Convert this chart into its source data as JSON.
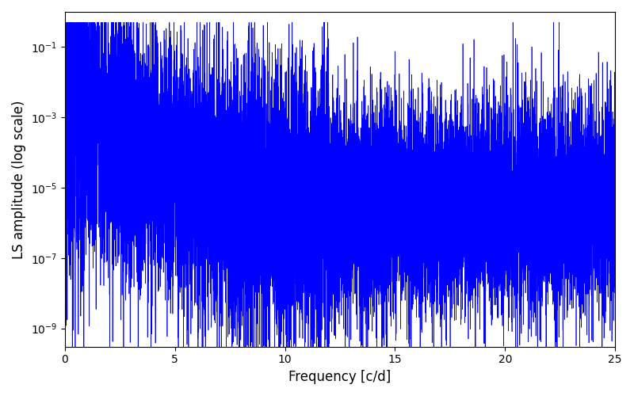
{
  "xlabel": "Frequency [c/d]",
  "ylabel": "LS amplitude (log scale)",
  "xlim": [
    0,
    25
  ],
  "ylim": [
    3e-10,
    1.0
  ],
  "line_color": "blue",
  "linewidth": 0.5,
  "figsize": [
    8.0,
    5.0
  ],
  "dpi": 100,
  "background_color": "#ffffff",
  "yscale": "log",
  "freq_max": 25.0,
  "seed": 12345
}
